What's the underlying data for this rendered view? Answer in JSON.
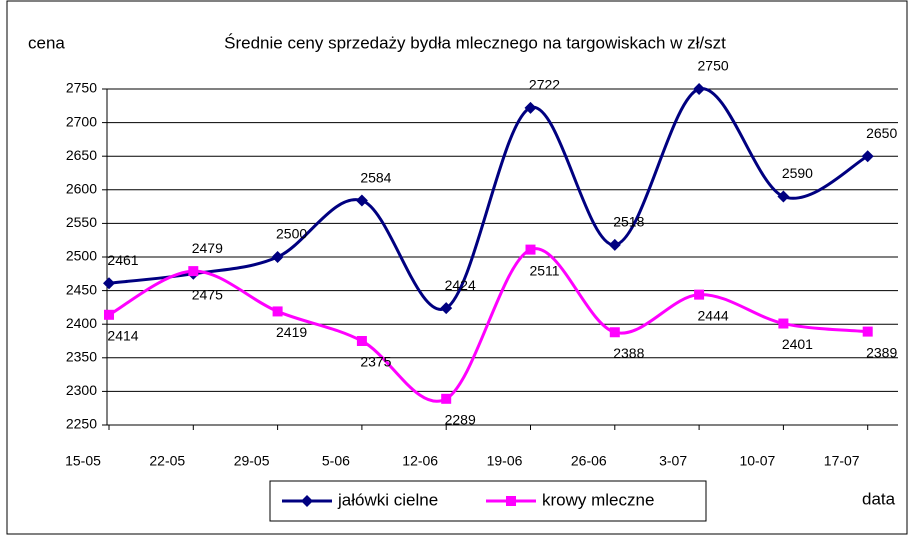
{
  "chart_data": {
    "type": "line",
    "title": "Średnie ceny sprzedaży bydła mlecznego na targowiskach w zł/szt",
    "y_label": "cena",
    "x_label": "data",
    "categories": [
      "15-05",
      "22-05",
      "29-05",
      "5-06",
      "12-06",
      "19-06",
      "26-06",
      "3-07",
      "10-07",
      "17-07"
    ],
    "series": [
      {
        "name": "jałówki cielne",
        "color": "#000080",
        "marker": "diamond",
        "values": [
          2461,
          2475,
          2500,
          2584,
          2424,
          2722,
          2518,
          2750,
          2590,
          2650
        ]
      },
      {
        "name": "krowy mleczne",
        "color": "#ff00ff",
        "marker": "square",
        "values": [
          2414,
          2479,
          2419,
          2375,
          2289,
          2511,
          2388,
          2444,
          2401,
          2389
        ]
      }
    ],
    "ylim": [
      2250,
      2750
    ],
    "yticks": [
      2250,
      2300,
      2350,
      2400,
      2450,
      2500,
      2550,
      2600,
      2650,
      2700,
      2750
    ],
    "grid": true,
    "smooth": true,
    "legend": "bottom"
  }
}
